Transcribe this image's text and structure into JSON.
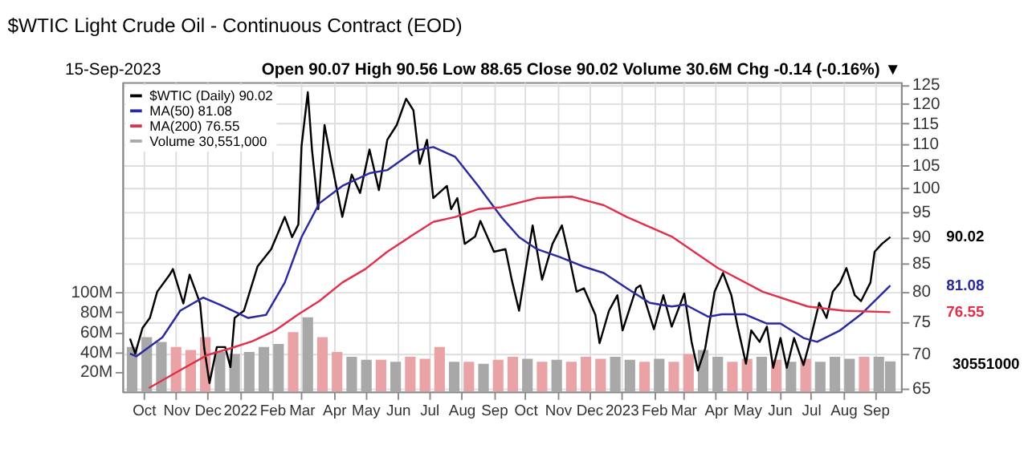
{
  "chart_data": {
    "type": "line",
    "title": "$WTIC Light Crude Oil - Continuous Contract (EOD)",
    "subtitle": "15-Sep-2023",
    "annotations": [
      "Open 90.07  High 90.56  Low 88.65  Close 90.02  Volume 30.6M  Chg -0.14 (-0.16%) ▼",
      "30551000",
      "90.02",
      "81.08",
      "76.55"
    ],
    "log": "y",
    "grid": true,
    "legend": "top left",
    "marker": "none",
    "line_style": "solid",
    "xlim": [
      "2021-09-18",
      "2023-09-18"
    ],
    "xticks": [
      {
        "value": "2021-10-01",
        "label": "Oct"
      },
      {
        "value": "2021-11-01",
        "label": "Nov"
      },
      {
        "value": "2021-12-01",
        "label": "Dec"
      },
      {
        "value": "2022-01-01",
        "label": "2022"
      },
      {
        "value": "2022-02-01",
        "label": "Feb"
      },
      {
        "value": "2022-03-01",
        "label": "Mar"
      },
      {
        "value": "2022-04-01",
        "label": "Apr"
      },
      {
        "value": "2022-05-01",
        "label": "May"
      },
      {
        "value": "2022-06-01",
        "label": "Jun"
      },
      {
        "value": "2022-07-01",
        "label": "Jul"
      },
      {
        "value": "2022-08-01",
        "label": "Aug"
      },
      {
        "value": "2022-09-01",
        "label": "Sep"
      },
      {
        "value": "2022-10-01",
        "label": "Oct"
      },
      {
        "value": "2022-11-01",
        "label": "Nov"
      },
      {
        "value": "2022-12-01",
        "label": "Dec"
      },
      {
        "value": "2023-01-01",
        "label": "2023"
      },
      {
        "value": "2023-02-01",
        "label": "Feb"
      },
      {
        "value": "2023-03-01",
        "label": "Mar"
      },
      {
        "value": "2023-04-01",
        "label": "Apr"
      },
      {
        "value": "2023-05-01",
        "label": "May"
      },
      {
        "value": "2023-06-01",
        "label": "Jun"
      },
      {
        "value": "2023-07-01",
        "label": "Jul"
      },
      {
        "value": "2023-08-01",
        "label": "Aug"
      },
      {
        "value": "2023-09-01",
        "label": "Sep"
      }
    ],
    "ylim": [
      64.5,
      125.7
    ],
    "yticks": [
      65,
      70,
      75,
      80,
      85,
      90,
      95,
      100,
      105,
      110,
      115,
      120,
      125
    ],
    "y2lim": [
      0,
      312000000
    ],
    "y2ticks": [
      {
        "value": 20000000,
        "label": "20M"
      },
      {
        "value": 40000000,
        "label": "40M"
      },
      {
        "value": 60000000,
        "label": "60M"
      },
      {
        "value": 80000000,
        "label": "80M"
      },
      {
        "value": 100000000,
        "label": "100M"
      }
    ],
    "series": [
      {
        "name": "$WTIC (Daily) 90.02",
        "color": "#000000",
        "x": [
          "2021-09-18",
          "2021-09-23",
          "2021-09-30",
          "2021-10-07",
          "2021-10-14",
          "2021-10-26",
          "2021-10-29",
          "2021-11-08",
          "2021-11-14",
          "2021-11-20",
          "2021-11-24",
          "2021-11-28",
          "2021-12-03",
          "2021-12-10",
          "2021-12-18",
          "2021-12-23",
          "2021-12-27",
          "2022-01-05",
          "2022-01-18",
          "2022-01-31",
          "2022-02-13",
          "2022-02-20",
          "2022-02-26",
          "2022-03-01",
          "2022-03-07",
          "2022-03-11",
          "2022-03-17",
          "2022-03-23",
          "2022-03-30",
          "2022-04-09",
          "2022-04-18",
          "2022-04-26",
          "2022-05-05",
          "2022-05-14",
          "2022-05-22",
          "2022-05-31",
          "2022-06-09",
          "2022-06-16",
          "2022-06-22",
          "2022-06-29",
          "2022-07-05",
          "2022-07-18",
          "2022-07-22",
          "2022-07-28",
          "2022-08-04",
          "2022-08-14",
          "2022-08-19",
          "2022-09-01",
          "2022-09-12",
          "2022-09-18",
          "2022-09-25",
          "2022-10-08",
          "2022-10-17",
          "2022-10-27",
          "2022-11-05",
          "2022-11-13",
          "2022-11-19",
          "2022-11-26",
          "2022-12-07",
          "2022-12-11",
          "2022-12-20",
          "2022-12-28",
          "2023-01-02",
          "2023-01-15",
          "2023-01-19",
          "2023-02-01",
          "2023-02-10",
          "2023-02-18",
          "2023-03-02",
          "2023-03-09",
          "2023-03-15",
          "2023-03-22",
          "2023-03-31",
          "2023-04-08",
          "2023-04-16",
          "2023-04-22",
          "2023-04-30",
          "2023-05-05",
          "2023-05-13",
          "2023-05-20",
          "2023-05-26",
          "2023-06-02",
          "2023-06-08",
          "2023-06-15",
          "2023-06-24",
          "2023-06-30",
          "2023-07-09",
          "2023-07-16",
          "2023-07-22",
          "2023-07-29",
          "2023-08-04",
          "2023-08-12",
          "2023-08-18",
          "2023-08-27",
          "2023-08-31",
          "2023-09-07",
          "2023-09-15"
        ],
        "values": [
          72.3,
          70,
          74,
          75.6,
          80,
          83,
          84,
          78,
          83,
          80,
          78,
          70.8,
          65.7,
          71,
          71,
          68,
          75.6,
          76.8,
          84.5,
          87.7,
          94,
          90,
          92.5,
          109.5,
          123,
          108.7,
          95.6,
          114.6,
          105.4,
          94,
          103,
          99,
          108.7,
          99.6,
          111,
          114.6,
          121.3,
          118.3,
          105.4,
          111,
          97.9,
          100.5,
          95.6,
          97.9,
          88.7,
          90.1,
          93.2,
          87.2,
          87.7,
          82.1,
          76.8,
          92.3,
          82.1,
          88.7,
          92.3,
          85.3,
          80,
          80.6,
          76.1,
          71.6,
          76.8,
          79.4,
          73.6,
          80.6,
          81.1,
          73.8,
          79.4,
          74.2,
          79.7,
          71.8,
          67.5,
          70.8,
          80,
          83.3,
          79.4,
          74.2,
          68.5,
          73.6,
          71.8,
          74.2,
          67.9,
          72.4,
          67.9,
          72.4,
          68.3,
          71.8,
          78.1,
          75.6,
          80,
          81.6,
          84.2,
          79.4,
          78.4,
          81.6,
          87.2,
          88.7,
          90.02
        ]
      },
      {
        "name": "MA(50) 81.08",
        "color": "#2a2aa0",
        "x": [
          "2021-09-18",
          "2021-09-24",
          "2021-10-19",
          "2021-11-05",
          "2021-11-27",
          "2021-12-14",
          "2022-01-09",
          "2022-01-26",
          "2022-02-13",
          "2022-03-01",
          "2022-03-18",
          "2022-04-09",
          "2022-05-05",
          "2022-05-22",
          "2022-06-17",
          "2022-07-05",
          "2022-07-26",
          "2022-08-17",
          "2022-09-08",
          "2022-09-25",
          "2022-10-12",
          "2022-11-03",
          "2022-11-25",
          "2022-12-15",
          "2023-01-06",
          "2023-01-28",
          "2023-02-18",
          "2023-03-03",
          "2023-03-25",
          "2023-04-07",
          "2023-04-29",
          "2023-05-20",
          "2023-06-02",
          "2023-06-24",
          "2023-07-07",
          "2023-07-29",
          "2023-08-18",
          "2023-09-15"
        ],
        "values": [
          70,
          69.6,
          72.5,
          76.8,
          79,
          77.7,
          75.6,
          76.1,
          81.6,
          90,
          96.8,
          100.5,
          103.3,
          104,
          108.4,
          109.3,
          107,
          100.5,
          94,
          90,
          87.7,
          86.2,
          84.5,
          83.3,
          80.6,
          78.1,
          77.5,
          77.8,
          75.8,
          76.2,
          76.2,
          74.7,
          74.7,
          72.4,
          71.8,
          73.6,
          76.2,
          81.08
        ]
      },
      {
        "name": "MA(200) 76.55",
        "color": "#e0304a",
        "x": [
          "2021-10-06",
          "2021-11-09",
          "2021-12-01",
          "2021-12-23",
          "2022-01-13",
          "2022-02-04",
          "2022-02-26",
          "2022-03-18",
          "2022-04-09",
          "2022-05-01",
          "2022-05-22",
          "2022-06-13",
          "2022-07-05",
          "2022-07-26",
          "2022-08-17",
          "2022-09-08",
          "2022-10-12",
          "2022-11-15",
          "2022-12-15",
          "2023-01-06",
          "2023-02-18",
          "2023-04-03",
          "2023-05-16",
          "2023-06-28",
          "2023-08-01",
          "2023-09-15"
        ],
        "values": [
          65,
          67.9,
          69.8,
          70.8,
          71.9,
          73.6,
          76.2,
          78.4,
          81.6,
          84,
          87.2,
          90.1,
          93,
          94,
          95.6,
          96,
          97.9,
          98.2,
          96.4,
          94,
          90.1,
          84.2,
          80,
          77.5,
          76.8,
          76.55
        ]
      },
      {
        "name": "Volume 30,551,000",
        "type": "bar",
        "axis": "y2",
        "color": "#a8a8a8",
        "x": [
          "2021-09-20",
          "2021-10-04",
          "2021-10-18",
          "2021-11-01",
          "2021-11-15",
          "2021-11-29",
          "2021-12-13",
          "2021-12-27",
          "2022-01-10",
          "2022-01-24",
          "2022-02-07",
          "2022-02-21",
          "2022-03-07",
          "2022-03-21",
          "2022-04-04",
          "2022-04-18",
          "2022-05-02",
          "2022-05-16",
          "2022-05-30",
          "2022-06-13",
          "2022-06-27",
          "2022-07-11",
          "2022-07-25",
          "2022-08-08",
          "2022-08-22",
          "2022-09-05",
          "2022-09-19",
          "2022-10-03",
          "2022-10-17",
          "2022-10-31",
          "2022-11-14",
          "2022-11-28",
          "2022-12-12",
          "2022-12-26",
          "2023-01-09",
          "2023-01-23",
          "2023-02-06",
          "2023-02-20",
          "2023-03-06",
          "2023-03-20",
          "2023-04-03",
          "2023-04-17",
          "2023-05-01",
          "2023-05-15",
          "2023-05-29",
          "2023-06-12",
          "2023-06-26",
          "2023-07-10",
          "2023-07-24",
          "2023-08-07",
          "2023-08-21",
          "2023-09-04",
          "2023-09-15"
        ],
        "values": [
          45000000,
          55000000,
          50000000,
          45000000,
          42000000,
          55000000,
          40000000,
          38000000,
          40000000,
          45000000,
          48000000,
          60000000,
          75000000,
          55000000,
          40000000,
          35000000,
          32000000,
          32000000,
          30000000,
          35000000,
          33000000,
          45000000,
          30000000,
          30000000,
          28000000,
          32000000,
          35000000,
          33000000,
          30000000,
          32000000,
          30000000,
          35000000,
          33000000,
          35000000,
          32000000,
          30000000,
          33000000,
          30000000,
          38000000,
          42000000,
          35000000,
          30000000,
          33000000,
          35000000,
          32000000,
          30000000,
          33000000,
          30000000,
          35000000,
          33000000,
          35000000,
          35000000,
          30551000
        ],
        "colors": [
          "#a8a8a8",
          "#a8a8a8",
          "#a8a8a8",
          "#e9a3a6",
          "#e9a3a6",
          "#e9a3a6",
          "#a8a8a8",
          "#a8a8a8",
          "#a8a8a8",
          "#a8a8a8",
          "#a8a8a8",
          "#e9a3a6",
          "#a8a8a8",
          "#e9a3a6",
          "#e9a3a6",
          "#a8a8a8",
          "#a8a8a8",
          "#e9a3a6",
          "#a8a8a8",
          "#e9a3a6",
          "#e9a3a6",
          "#e9a3a6",
          "#a8a8a8",
          "#e9a3a6",
          "#a8a8a8",
          "#e9a3a6",
          "#e9a3a6",
          "#a8a8a8",
          "#e9a3a6",
          "#a8a8a8",
          "#e9a3a6",
          "#e9a3a6",
          "#e9a3a6",
          "#a8a8a8",
          "#a8a8a8",
          "#e9a3a6",
          "#a8a8a8",
          "#e9a3a6",
          "#e9a3a6",
          "#a8a8a8",
          "#a8a8a8",
          "#e9a3a6",
          "#e9a3a6",
          "#a8a8a8",
          "#e9a3a6",
          "#a8a8a8",
          "#e9a3a6",
          "#a8a8a8",
          "#a8a8a8",
          "#a8a8a8",
          "#e9a3a6",
          "#a8a8a8",
          "#a8a8a8"
        ]
      }
    ]
  }
}
